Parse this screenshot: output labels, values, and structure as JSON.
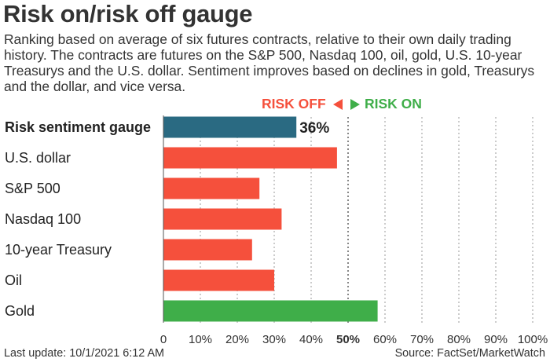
{
  "title": "Risk on/risk off gauge",
  "subtitle": "Ranking based on average of six futures contracts, relative to their own daily trading history. The contracts are futures on the S&P 500, Nasdaq 100, oil, gold, U.S. 10-year Treasurys and the U.S. dollar. Sentiment improves based on declines in gold, Treasurys and the dollar, and vice versa.",
  "direction": {
    "off_label": "RISK OFF",
    "on_label": "RISK ON"
  },
  "footer": {
    "last_update": "Last update: 10/1/2021 6:12 AM",
    "source": "Source: FactSet/MarketWatch"
  },
  "colors": {
    "gauge": "#2a6a82",
    "risk_off": "#f5503c",
    "risk_on": "#3fae49",
    "grid": "#9a9a9a"
  },
  "chart_data": {
    "type": "bar",
    "orientation": "horizontal",
    "categories": [
      "Risk sentiment gauge",
      "U.S. dollar",
      "S&P 500",
      "Nasdaq 100",
      "10-year Treasury",
      "Oil",
      "Gold"
    ],
    "values": [
      36,
      47,
      26,
      32,
      24,
      30,
      58
    ],
    "bar_colors": [
      "gauge",
      "risk_off",
      "risk_off",
      "risk_off",
      "risk_off",
      "risk_off",
      "risk_on"
    ],
    "bold_categories": [
      "Risk sentiment gauge"
    ],
    "data_labels": {
      "Risk sentiment gauge": "36%"
    },
    "x_ticks": [
      0,
      10,
      20,
      30,
      40,
      50,
      60,
      70,
      80,
      90,
      100
    ],
    "x_tick_labels": [
      "0",
      "10%",
      "20%",
      "30%",
      "40%",
      "50%",
      "60%",
      "70%",
      "80%",
      "90%",
      "100%"
    ],
    "xlim": [
      0,
      100
    ],
    "midpoint": 50,
    "grid": true
  }
}
